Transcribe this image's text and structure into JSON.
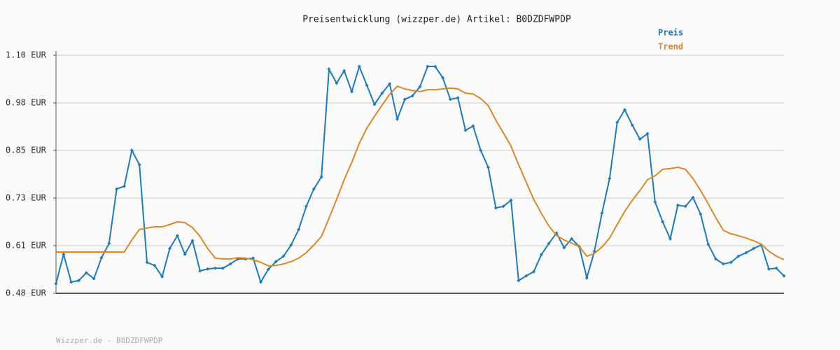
{
  "chart_data": {
    "type": "line",
    "title": "Preisentwicklung (wizzper.de) Artikel: B0DZDFWPDP",
    "footer": "Wizzper.de - B0DZDFWPDP",
    "ylim": [
      0.484,
      1.1
    ],
    "yticks": [
      {
        "value": 0.484,
        "label": "0.48 EUR"
      },
      {
        "value": 0.6072,
        "label": "0.61 EUR"
      },
      {
        "value": 0.7304,
        "label": "0.73 EUR"
      },
      {
        "value": 0.8536,
        "label": "0.85 EUR"
      },
      {
        "value": 0.9768,
        "label": "0.98 EUR"
      },
      {
        "value": 1.1,
        "label": "1.10 EUR"
      }
    ],
    "grid": true,
    "legend": "top-right",
    "series": [
      {
        "name": "Preis",
        "color": "#1f7ab5",
        "markers": true,
        "values": [
          0.509,
          0.585,
          0.513,
          0.517,
          0.537,
          0.522,
          0.576,
          0.613,
          0.754,
          0.761,
          0.854,
          0.817,
          0.564,
          0.556,
          0.527,
          0.6,
          0.633,
          0.585,
          0.62,
          0.542,
          0.547,
          0.549,
          0.549,
          0.56,
          0.573,
          0.573,
          0.575,
          0.513,
          0.546,
          0.566,
          0.58,
          0.609,
          0.649,
          0.709,
          0.754,
          0.785,
          1.064,
          1.028,
          1.06,
          1.006,
          1.071,
          1.022,
          0.973,
          1.002,
          1.026,
          0.935,
          0.986,
          0.995,
          1.019,
          1.071,
          1.071,
          1.042,
          0.986,
          0.99,
          0.906,
          0.917,
          0.854,
          0.81,
          0.705,
          0.709,
          0.725,
          0.517,
          0.529,
          0.54,
          0.584,
          0.613,
          0.64,
          0.602,
          0.625,
          0.605,
          0.524,
          0.593,
          0.692,
          0.781,
          0.926,
          0.959,
          0.919,
          0.883,
          0.897,
          0.72,
          0.669,
          0.625,
          0.712,
          0.709,
          0.732,
          0.689,
          0.611,
          0.573,
          0.56,
          0.564,
          0.58,
          0.589,
          0.6,
          0.609,
          0.547,
          0.549,
          0.529
        ]
      },
      {
        "name": "Trend",
        "color": "#d9892a",
        "markers": false,
        "values": [
          0.591,
          0.591,
          0.591,
          0.591,
          0.591,
          0.591,
          0.591,
          0.591,
          0.591,
          0.591,
          0.622,
          0.649,
          0.653,
          0.656,
          0.656,
          0.662,
          0.669,
          0.667,
          0.654,
          0.631,
          0.6,
          0.575,
          0.573,
          0.573,
          0.576,
          0.575,
          0.571,
          0.564,
          0.555,
          0.556,
          0.56,
          0.566,
          0.575,
          0.589,
          0.609,
          0.631,
          0.678,
          0.727,
          0.778,
          0.823,
          0.872,
          0.912,
          0.942,
          0.971,
          0.999,
          1.02,
          1.013,
          1.009,
          1.006,
          1.011,
          1.011,
          1.013,
          1.015,
          1.013,
          1.002,
          1.0,
          0.988,
          0.97,
          0.932,
          0.899,
          0.865,
          0.817,
          0.772,
          0.727,
          0.691,
          0.658,
          0.634,
          0.622,
          0.614,
          0.605,
          0.58,
          0.587,
          0.604,
          0.627,
          0.662,
          0.696,
          0.725,
          0.75,
          0.778,
          0.788,
          0.805,
          0.807,
          0.81,
          0.805,
          0.781,
          0.75,
          0.716,
          0.68,
          0.647,
          0.638,
          0.633,
          0.627,
          0.62,
          0.611,
          0.593,
          0.58,
          0.571
        ]
      }
    ]
  }
}
